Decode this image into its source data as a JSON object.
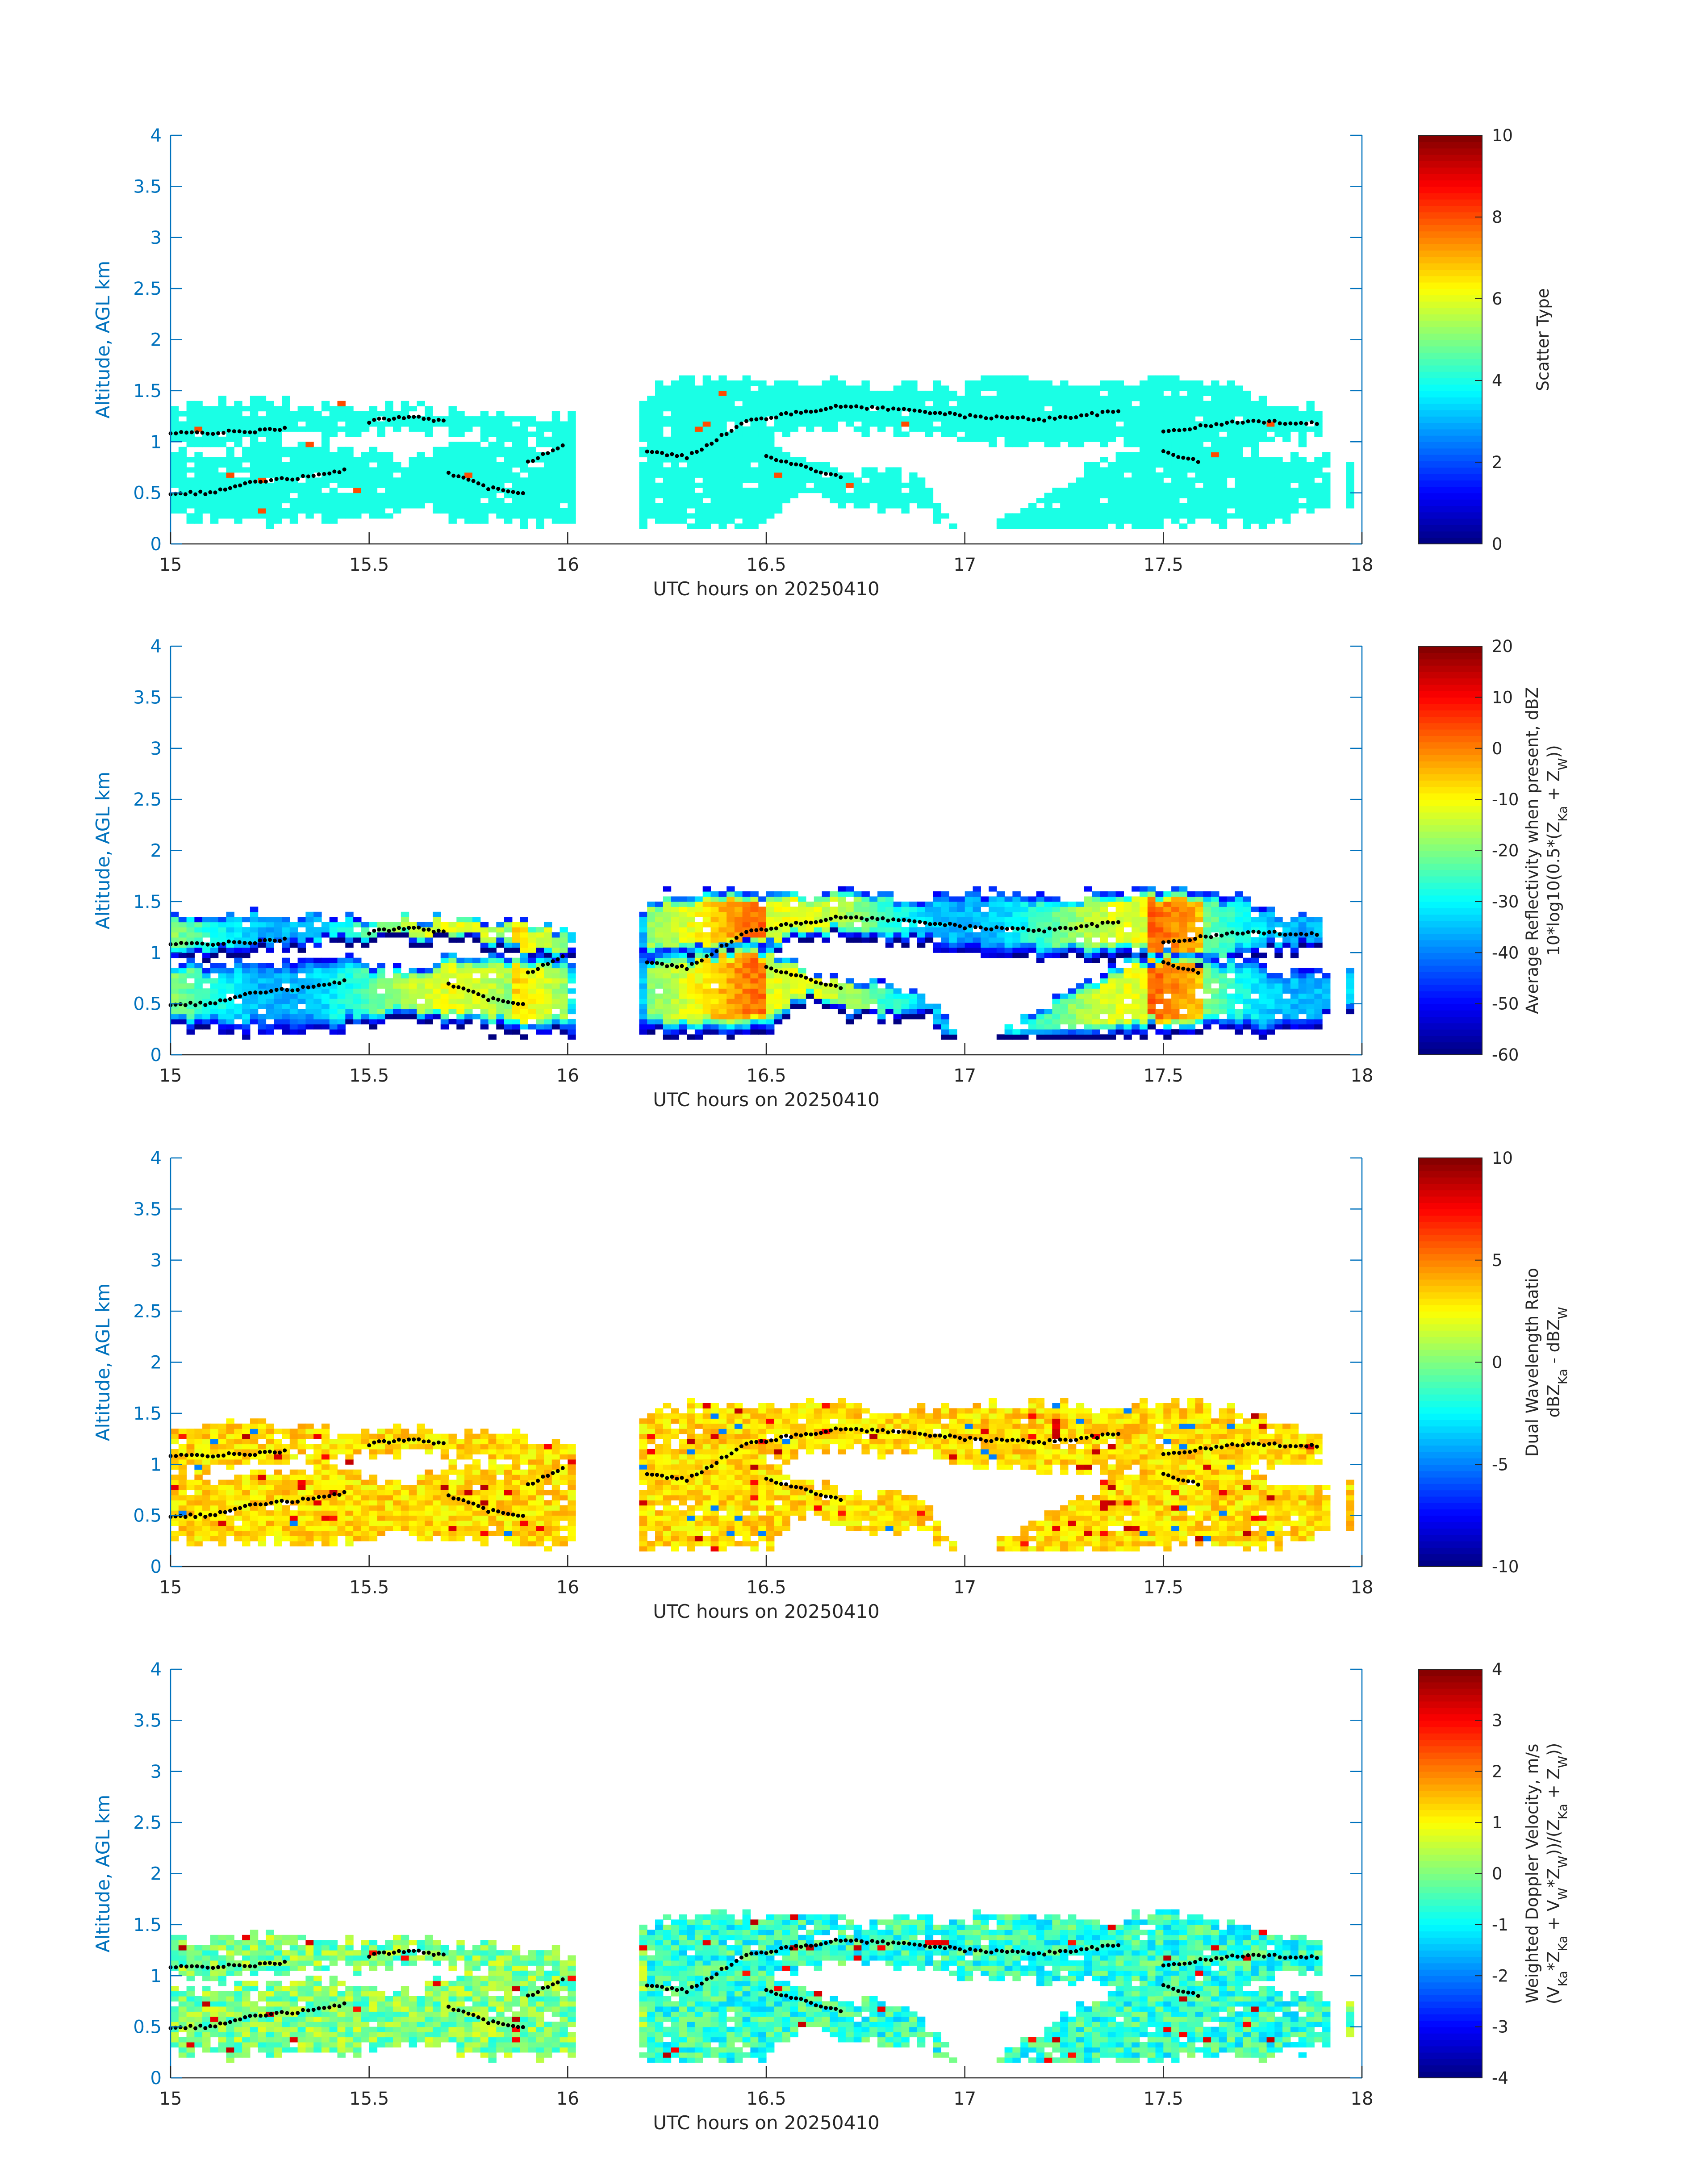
{
  "date": "20250410",
  "chart_data": [
    {
      "type": "heatmap",
      "id": "scatter_type",
      "xlabel": "UTC hours on 20250410",
      "ylabel": "Altitude, AGL km",
      "xlim": [
        15,
        18
      ],
      "ylim": [
        0,
        4
      ],
      "xticks": [
        "15",
        "15.5",
        "16",
        "16.5",
        "17",
        "17.5",
        "18"
      ],
      "yticks": [
        "0",
        "0.5",
        "1",
        "1.5",
        "2",
        "2.5",
        "3",
        "3.5",
        "4"
      ],
      "colorbar": {
        "label_lines": [
          "Scatter Type"
        ],
        "range": [
          0,
          10
        ],
        "ticks": [
          "0",
          "2",
          "4",
          "6",
          "8",
          "10"
        ]
      },
      "dominant_value": 4,
      "note_values": "cloud mask predominantly scatter type 4, isolated type 8 pixels"
    },
    {
      "type": "heatmap",
      "id": "avg_reflectivity",
      "xlabel": "UTC hours on 20250410",
      "ylabel": "Altitude, AGL km",
      "xlim": [
        15,
        18
      ],
      "ylim": [
        0,
        4
      ],
      "xticks": [
        "15",
        "15.5",
        "16",
        "16.5",
        "17",
        "17.5",
        "18"
      ],
      "yticks": [
        "0",
        "0.5",
        "1",
        "1.5",
        "2",
        "2.5",
        "3",
        "3.5",
        "4"
      ],
      "colorbar": {
        "label_lines": [
          "Average Reflectivity when present, dBZ",
          "10*log10(0.5*(Z_Ka + Z_W))"
        ],
        "range": [
          -60,
          20
        ],
        "ticks": [
          "-60",
          "-50",
          "-40",
          "-30",
          "-20",
          "-10",
          "0",
          "10",
          "20"
        ]
      }
    },
    {
      "type": "heatmap",
      "id": "dwr",
      "xlabel": "UTC hours on 20250410",
      "ylabel": "Altitude, AGL km",
      "xlim": [
        15,
        18
      ],
      "ylim": [
        0,
        4
      ],
      "xticks": [
        "15",
        "15.5",
        "16",
        "16.5",
        "17",
        "17.5",
        "18"
      ],
      "yticks": [
        "0",
        "0.5",
        "1",
        "1.5",
        "2",
        "2.5",
        "3",
        "3.5",
        "4"
      ],
      "colorbar": {
        "label_lines": [
          "Dual Wavelength Ratio",
          "dBZ_Ka - dBZ_W"
        ],
        "range": [
          -10,
          10
        ],
        "ticks": [
          "-10",
          "-5",
          "0",
          "5",
          "10"
        ]
      }
    },
    {
      "type": "heatmap",
      "id": "doppler_velocity",
      "xlabel": "UTC hours on 20250410",
      "ylabel": "Altitude, AGL km",
      "xlim": [
        15,
        18
      ],
      "ylim": [
        0,
        4
      ],
      "xticks": [
        "15",
        "15.5",
        "16",
        "16.5",
        "17",
        "17.5",
        "18"
      ],
      "yticks": [
        "0",
        "0.5",
        "1",
        "1.5",
        "2",
        "2.5",
        "3",
        "3.5",
        "4"
      ],
      "colorbar": {
        "label_lines": [
          "Weighted Doppler Velocity, m/s",
          "(V_Ka*Z_Ka + V_W*Z_W))/(Z_Ka + Z_W))"
        ],
        "range": [
          -4,
          4
        ],
        "ticks": [
          "-4",
          "-3",
          "-2",
          "-1",
          "0",
          "1",
          "2",
          "3",
          "4"
        ]
      }
    }
  ],
  "cloud_mask": {
    "gaps": [
      [
        16.02,
        16.17
      ],
      [
        17.92,
        17.96
      ]
    ],
    "upper_layer": [
      [
        15.0,
        1.0,
        1.33
      ],
      [
        15.1,
        0.98,
        1.35
      ],
      [
        15.2,
        1.03,
        1.38
      ],
      [
        15.3,
        1.08,
        1.35
      ],
      [
        15.4,
        1.1,
        1.33
      ],
      [
        15.47,
        1.1,
        1.3
      ],
      [
        15.6,
        1.14,
        1.32
      ],
      [
        15.7,
        1.12,
        1.3
      ],
      [
        15.8,
        1.08,
        1.28
      ],
      [
        15.9,
        0.95,
        1.25
      ],
      [
        16.0,
        0.95,
        1.2
      ],
      [
        16.17,
        1.0,
        1.38
      ],
      [
        16.25,
        0.95,
        1.58
      ],
      [
        16.4,
        0.98,
        1.57
      ],
      [
        16.5,
        1.05,
        1.55
      ],
      [
        16.6,
        1.12,
        1.55
      ],
      [
        16.7,
        1.18,
        1.55
      ],
      [
        16.8,
        1.12,
        1.52
      ],
      [
        16.9,
        1.1,
        1.5
      ],
      [
        17.0,
        1.02,
        1.55
      ],
      [
        17.1,
        1.0,
        1.58
      ],
      [
        17.2,
        0.98,
        1.56
      ],
      [
        17.3,
        0.95,
        1.55
      ],
      [
        17.4,
        0.98,
        1.55
      ],
      [
        17.5,
        0.85,
        1.6
      ],
      [
        17.6,
        0.85,
        1.58
      ],
      [
        17.7,
        0.95,
        1.5
      ],
      [
        17.8,
        1.05,
        1.35
      ],
      [
        17.89,
        1.05,
        1.3
      ]
    ],
    "lower_layer": [
      [
        15.0,
        0.3,
        0.9
      ],
      [
        15.1,
        0.25,
        0.85
      ],
      [
        15.2,
        0.25,
        0.9
      ],
      [
        15.3,
        0.25,
        0.9
      ],
      [
        15.4,
        0.25,
        0.95
      ],
      [
        15.5,
        0.3,
        0.85
      ],
      [
        15.6,
        0.35,
        0.8
      ],
      [
        15.7,
        0.3,
        0.95
      ],
      [
        15.8,
        0.25,
        1.0
      ],
      [
        15.9,
        0.22,
        0.95
      ],
      [
        16.0,
        0.25,
        0.95
      ],
      [
        16.17,
        0.22,
        0.95
      ],
      [
        16.3,
        0.18,
        1.0
      ],
      [
        16.4,
        0.18,
        1.05
      ],
      [
        16.5,
        0.2,
        1.05
      ],
      [
        16.55,
        0.4,
        0.9
      ],
      [
        16.6,
        0.55,
        0.8
      ],
      [
        16.7,
        0.4,
        0.7
      ],
      [
        16.8,
        0.35,
        0.7
      ],
      [
        16.9,
        0.4,
        0.6
      ],
      [
        17.0,
        0.0,
        0.0
      ],
      [
        17.4,
        0.2,
        0.9
      ],
      [
        17.5,
        0.22,
        1.0
      ],
      [
        17.6,
        0.25,
        0.95
      ],
      [
        17.7,
        0.22,
        0.9
      ],
      [
        17.8,
        0.25,
        0.8
      ],
      [
        17.9,
        0.35,
        0.8
      ],
      [
        17.97,
        0.4,
        0.8
      ]
    ]
  }
}
